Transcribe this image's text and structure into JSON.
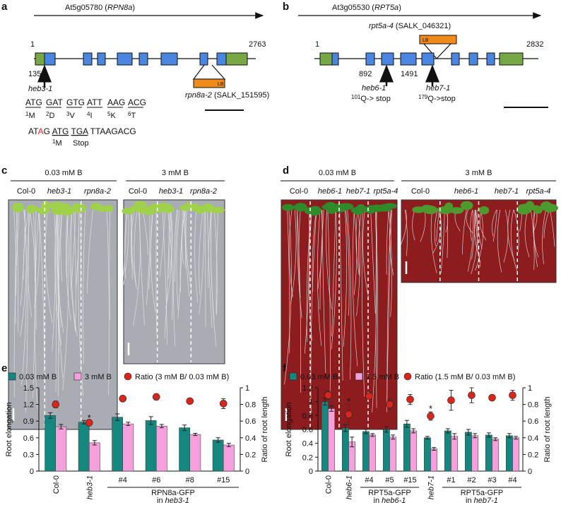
{
  "panel_a": {
    "letter": "a",
    "gene": [
      "At5g05780 (",
      "RPN8a",
      ")"
    ],
    "start": "1",
    "end": "2763",
    "site": "135",
    "allele": "heb3-1",
    "insert": "LB",
    "insert_allele": [
      "rpn8a-2",
      " (SALK_151595)"
    ],
    "codons": [
      "ATG",
      "GAT",
      "GTG",
      "ATT",
      "AAG",
      "ACG"
    ],
    "residues": [
      [
        "1",
        "M"
      ],
      [
        "2",
        "D"
      ],
      [
        "3",
        "V"
      ],
      [
        "4",
        "I"
      ],
      [
        "5",
        "K"
      ],
      [
        "6",
        "T"
      ]
    ],
    "mutant": [
      "AT",
      "A",
      "G",
      "ATG",
      "TGA",
      "TTAAGACG"
    ],
    "mutant_start": [
      "1",
      "M"
    ],
    "mutant_stop": "Stop"
  },
  "panel_b": {
    "letter": "b",
    "gene": [
      "At3g05530 (",
      "RPT5a",
      ")"
    ],
    "insert_allele": [
      "rpt5a-4",
      " (SALK_046321)"
    ],
    "insert": "LB",
    "start": "1",
    "end": "2832",
    "sites": [
      "892",
      "1491"
    ],
    "alleles": [
      {
        "name": "heb6-1",
        "change": [
          "101",
          "Q-> stop"
        ]
      },
      {
        "name": "heb7-1",
        "change": [
          "179",
          "Q->stop"
        ]
      }
    ]
  },
  "panel_c": {
    "letter": "c",
    "groups": [
      {
        "condition": "0.03 mM B",
        "lines": [
          "Col-0",
          "heb3-1",
          "rpn8a-2"
        ]
      },
      {
        "condition": "3 mM B",
        "lines": [
          "Col-0",
          "heb3-1",
          "rpn8a-2"
        ]
      }
    ]
  },
  "panel_d": {
    "letter": "d",
    "groups": [
      {
        "condition": "0.03 mM B",
        "lines": [
          "Col-0",
          "heb6-1",
          "heb7-1",
          "rpt5a-4"
        ]
      },
      {
        "condition": "3 mM B",
        "lines": [
          "Col-0",
          "heb6-1",
          "heb7-1",
          "rpt5a-4"
        ]
      }
    ]
  },
  "chart_data": [
    {
      "letter": "e",
      "type": "bar",
      "categories": [
        "Col-0",
        "heb3-1",
        "#4",
        "#6",
        "#8",
        "#15"
      ],
      "category_italic": [
        false,
        true,
        false,
        false,
        false,
        false
      ],
      "series": [
        {
          "name": "0.03 mM B",
          "color": "#16877f",
          "values": [
            1.0,
            0.88,
            0.97,
            0.91,
            0.78,
            0.56
          ],
          "errors": [
            0.05,
            0.03,
            0.06,
            0.07,
            0.05,
            0.04
          ]
        },
        {
          "name": "3 mM B",
          "color": "#f59fdc",
          "values": [
            0.8,
            0.51,
            0.85,
            0.81,
            0.66,
            0.47
          ],
          "errors": [
            0.04,
            0.04,
            0.03,
            0.03,
            0.02,
            0.03
          ]
        },
        {
          "name": "Ratio (3 mM B/ 0.03 mM B)",
          "color": "#d7261c",
          "axis": "y2",
          "marker": "circle",
          "values": [
            0.8,
            0.58,
            0.87,
            0.89,
            0.84,
            0.81
          ],
          "errors": [
            0.04,
            0.02,
            0.03,
            0.03,
            0.03,
            0.06
          ]
        }
      ],
      "ylabel": "Root elongation",
      "y2label": "Ratio of root length",
      "ylim": [
        0,
        1.5
      ],
      "yticks": [
        0,
        0.3,
        0.6,
        0.9,
        1.2,
        1.5
      ],
      "y2lim": [
        0,
        1
      ],
      "y2ticks": [
        0,
        0.2,
        0.4,
        0.6,
        0.8,
        1
      ],
      "annotations": [
        {
          "text": "*",
          "category": 1
        }
      ],
      "groups": [
        {
          "lines": [
            [
              "RPN8a-GFP"
            ],
            [
              "in ",
              "heb3-1"
            ]
          ],
          "span": [
            2,
            5
          ]
        }
      ]
    },
    {
      "letter": "f",
      "type": "bar",
      "categories": [
        "Col-0",
        "heb6-1",
        "#4",
        "#5",
        "#15",
        "heb7-1",
        "#1",
        "#2",
        "#3",
        "#4"
      ],
      "category_italic": [
        false,
        true,
        false,
        false,
        false,
        true,
        false,
        false,
        false,
        false
      ],
      "series": [
        {
          "name": "0.03 mM B",
          "color": "#16877f",
          "values": [
            1.0,
            0.62,
            0.57,
            0.6,
            0.68,
            0.48,
            0.58,
            0.56,
            0.52,
            0.51
          ],
          "errors": [
            0.05,
            0.05,
            0.03,
            0.04,
            0.05,
            0.02,
            0.03,
            0.04,
            0.03,
            0.03
          ]
        },
        {
          "name": "1.5 mM B",
          "color": "#f59fdc",
          "values": [
            0.9,
            0.42,
            0.52,
            0.49,
            0.58,
            0.32,
            0.5,
            0.51,
            0.46,
            0.48
          ],
          "errors": [
            0.04,
            0.07,
            0.02,
            0.03,
            0.03,
            0.02,
            0.04,
            0.03,
            0.02,
            0.02
          ]
        },
        {
          "name": "Ratio (1.5 mM B/ 0.03 mM B)",
          "color": "#d7261c",
          "axis": "y2",
          "marker": "circle",
          "values": [
            0.91,
            0.68,
            0.9,
            0.8,
            0.86,
            0.66,
            0.85,
            0.91,
            0.88,
            0.91
          ],
          "errors": [
            0.05,
            0.12,
            0.03,
            0.06,
            0.06,
            0.05,
            0.12,
            0.09,
            0.03,
            0.06
          ]
        }
      ],
      "ylabel": "Root elongation",
      "y2label": "Ratio of root length",
      "ylim": [
        0,
        1.2
      ],
      "yticks": [
        0,
        0.2,
        0.4,
        0.6,
        0.8,
        1,
        1.2
      ],
      "y2lim": [
        0,
        1
      ],
      "y2ticks": [
        0,
        0.2,
        0.4,
        0.6,
        0.8,
        1
      ],
      "annotations": [
        {
          "text": "*",
          "category": 1
        },
        {
          "text": "*",
          "category": 5
        }
      ],
      "groups": [
        {
          "lines": [
            [
              "RPT5a-GFP"
            ],
            [
              "in ",
              "heb6-1"
            ]
          ],
          "span": [
            2,
            4
          ]
        },
        {
          "lines": [
            [
              "RPT5a-GFP"
            ],
            [
              "in ",
              "heb7-1"
            ]
          ],
          "span": [
            6,
            9
          ]
        }
      ]
    }
  ]
}
